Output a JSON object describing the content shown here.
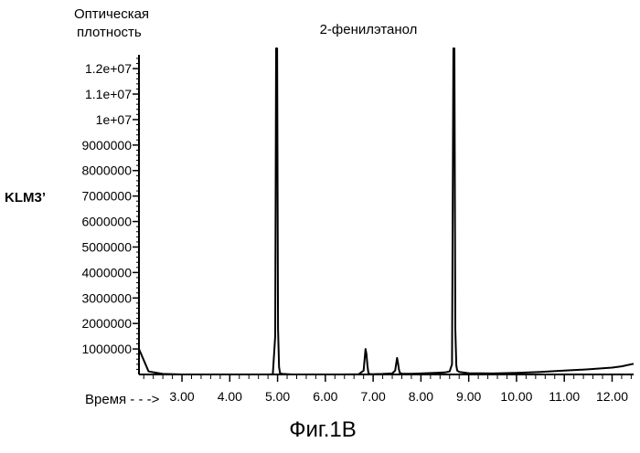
{
  "chart_data": {
    "type": "line",
    "ylabel_lines": [
      "Оптическая",
      "плотность"
    ],
    "xlabel": "Время - - ->",
    "series_label": "KLM3’",
    "annotation": "2-фенилэтанол",
    "caption": "Фиг.1В",
    "xlim": [
      2.1,
      12.45
    ],
    "ylim": [
      0,
      12900000
    ],
    "x_ticks": [
      "3.00",
      "4.00",
      "5.00",
      "6.00",
      "7.00",
      "8.00",
      "9.00",
      "10.00",
      "11.00",
      "12.00"
    ],
    "x_tick_values": [
      3,
      4,
      5,
      6,
      7,
      8,
      9,
      10,
      11,
      12
    ],
    "y_ticks": [
      "1000000",
      "2000000",
      "3000000",
      "4000000",
      "5000000",
      "6000000",
      "7000000",
      "8000000",
      "9000000",
      "1e+07",
      "1.1e+07",
      "1.2e+07"
    ],
    "y_tick_values": [
      1000000,
      2000000,
      3000000,
      4000000,
      5000000,
      6000000,
      7000000,
      8000000,
      9000000,
      10000000,
      11000000,
      12000000
    ],
    "series": [
      {
        "x": [
          2.1,
          2.3,
          2.6,
          3.0,
          3.5,
          4.0,
          4.5,
          4.8,
          4.9,
          4.95,
          4.97,
          4.99,
          5.01,
          5.03,
          5.05,
          5.1,
          5.3,
          5.8,
          6.3,
          6.7,
          6.8,
          6.84,
          6.86,
          6.88,
          6.9,
          6.92,
          6.96,
          7.2,
          7.4,
          7.46,
          7.5,
          7.52,
          7.54,
          7.56,
          7.6,
          7.8,
          8.0,
          8.3,
          8.5,
          8.6,
          8.65,
          8.68,
          8.7,
          8.72,
          8.74,
          8.76,
          8.8,
          9.0,
          9.5,
          10.0,
          10.5,
          11.0,
          11.5,
          12.0,
          12.2,
          12.45
        ],
        "y": [
          1000000,
          120000,
          20000,
          0,
          0,
          0,
          0,
          0,
          10000,
          1500000,
          12900000,
          12900000,
          1800000,
          300000,
          60000,
          20000,
          0,
          0,
          0,
          10000,
          150000,
          1000000,
          800000,
          350000,
          60000,
          20000,
          10000,
          20000,
          40000,
          150000,
          650000,
          450000,
          180000,
          60000,
          30000,
          30000,
          40000,
          60000,
          80000,
          120000,
          400000,
          12900000,
          12900000,
          1800000,
          350000,
          150000,
          100000,
          50000,
          40000,
          60000,
          100000,
          150000,
          200000,
          270000,
          320000,
          420000
        ]
      }
    ]
  }
}
